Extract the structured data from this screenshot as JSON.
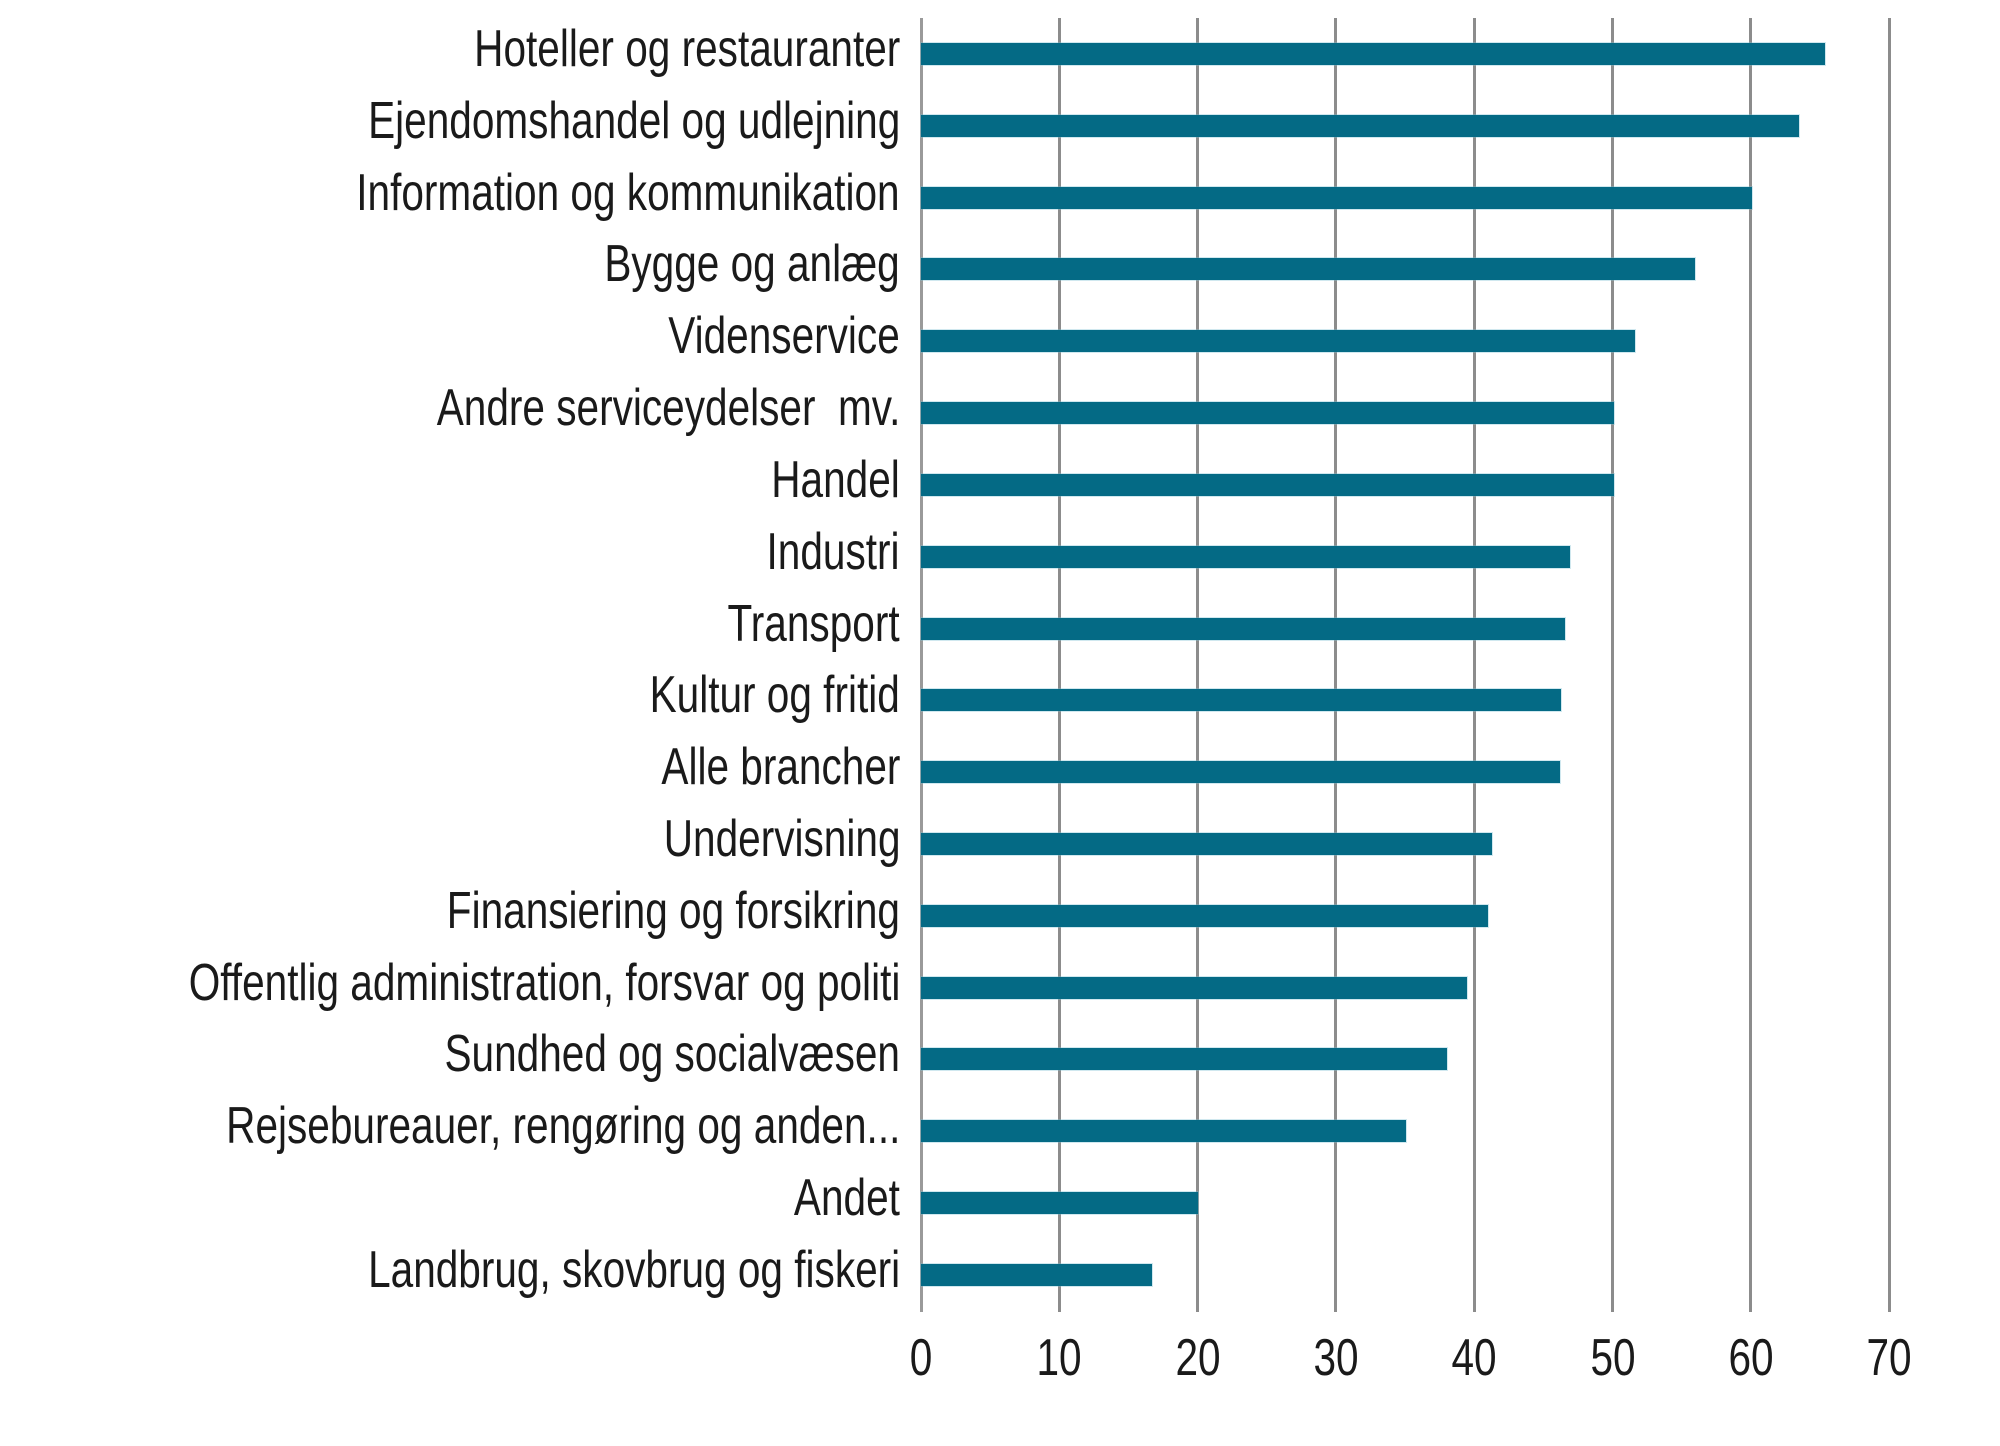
{
  "chart_data": {
    "type": "bar",
    "orientation": "horizontal",
    "title": "",
    "xlabel": "",
    "ylabel": "",
    "xlim": [
      0,
      70
    ],
    "x_ticks": [
      0,
      10,
      20,
      30,
      40,
      50,
      60,
      70
    ],
    "grid": "vertical",
    "legend": null,
    "bar_color": "#046a85",
    "gridline_color": "#8c8c8c",
    "categories": [
      "Hoteller og restauranter",
      "Ejendomshandel og udlejning",
      "Information og kommunikation",
      "Bygge og anlæg",
      "Videnservice",
      "Andre serviceydelser  mv.",
      "Handel",
      "Industri",
      "Transport",
      "Kultur og fritid",
      "Alle brancher",
      "Undervisning",
      "Finansiering og forsikring",
      "Offentlig administration, forsvar og politi",
      "Sundhed og socialvæsen",
      "Rejsebureauer, rengøring og anden...",
      "Andet",
      "Landbrug, skovbrug og fiskeri"
    ],
    "values": [
      65.4,
      63.5,
      60.1,
      56.0,
      51.6,
      50.1,
      50.1,
      46.9,
      46.6,
      46.3,
      46.2,
      41.3,
      41.0,
      39.5,
      38.0,
      35.1,
      20.0,
      16.7
    ]
  }
}
